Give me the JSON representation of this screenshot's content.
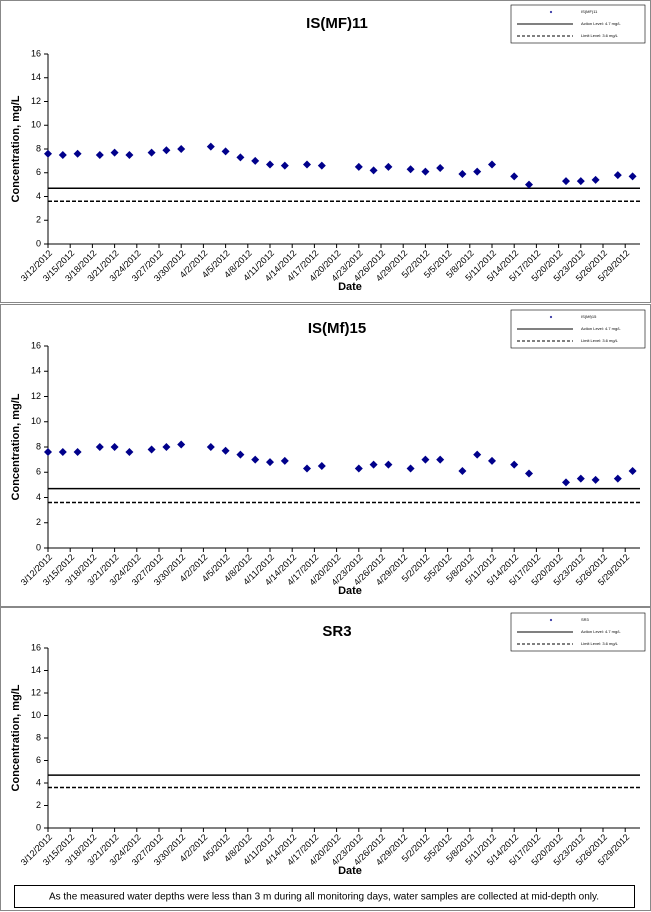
{
  "chart_data": [
    {
      "type": "scatter",
      "title": "IS(MF)11",
      "x_label": "Date",
      "y_label": "Concentration, mg/L",
      "legend": "upper right",
      "grid": false,
      "series": [
        {
          "name": "IS(MF)11",
          "color": "#00008b",
          "x": [
            "3/12/2012",
            "3/14/2012",
            "3/16/2012",
            "3/19/2012",
            "3/21/2012",
            "3/23/2012",
            "3/26/2012",
            "3/28/2012",
            "3/30/2012",
            "4/3/2012",
            "4/5/2012",
            "4/7/2012",
            "4/9/2012",
            "4/11/2012",
            "4/13/2012",
            "4/16/2012",
            "4/18/2012",
            "4/23/2012",
            "4/25/2012",
            "4/27/2012",
            "4/30/2012",
            "5/2/2012",
            "5/4/2012",
            "5/7/2012",
            "5/9/2012",
            "5/11/2012",
            "5/14/2012",
            "5/16/2012",
            "5/21/2012",
            "5/23/2012",
            "5/25/2012",
            "5/28/2012",
            "5/30/2012"
          ],
          "values": [
            7.6,
            7.5,
            7.6,
            7.5,
            7.7,
            7.5,
            7.7,
            7.9,
            8.0,
            8.2,
            7.8,
            7.3,
            7.0,
            6.7,
            6.6,
            6.7,
            6.6,
            6.5,
            6.2,
            6.5,
            6.3,
            6.1,
            6.4,
            5.9,
            6.1,
            6.7,
            5.7,
            5.0,
            5.3,
            5.3,
            5.4,
            5.8,
            5.7
          ]
        }
      ],
      "reference_lines": [
        {
          "name": "Action Level: 4.7 mg/L",
          "value": 4.7,
          "style": "solid",
          "color": "#000000"
        },
        {
          "name": "Limit Level: 3.6 mg/L",
          "value": 3.6,
          "style": "dashed",
          "color": "#000000"
        }
      ],
      "ylim": [
        0,
        16
      ],
      "yticks": [
        0,
        2,
        4,
        6,
        8,
        10,
        12,
        14,
        16
      ],
      "xlim": [
        "3/12/2012",
        "5/31/2012"
      ],
      "xticks": [
        "3/12/2012",
        "3/15/2012",
        "3/18/2012",
        "3/21/2012",
        "3/24/2012",
        "3/27/2012",
        "3/30/2012",
        "4/2/2012",
        "4/5/2012",
        "4/8/2012",
        "4/11/2012",
        "4/14/2012",
        "4/17/2012",
        "4/20/2012",
        "4/23/2012",
        "4/26/2012",
        "4/29/2012",
        "5/2/2012",
        "5/5/2012",
        "5/8/2012",
        "5/11/2012",
        "5/14/2012",
        "5/17/2012",
        "5/20/2012",
        "5/23/2012",
        "5/26/2012",
        "5/29/2012"
      ]
    },
    {
      "type": "scatter",
      "title": "IS(Mf)15",
      "x_label": "Date",
      "y_label": "Concentration, mg/L",
      "legend": "upper right",
      "grid": false,
      "series": [
        {
          "name": "IS(Mf)15",
          "color": "#00008b",
          "x": [
            "3/12/2012",
            "3/14/2012",
            "3/16/2012",
            "3/19/2012",
            "3/21/2012",
            "3/23/2012",
            "3/26/2012",
            "3/28/2012",
            "3/30/2012",
            "4/3/2012",
            "4/5/2012",
            "4/7/2012",
            "4/9/2012",
            "4/11/2012",
            "4/13/2012",
            "4/16/2012",
            "4/18/2012",
            "4/23/2012",
            "4/25/2012",
            "4/27/2012",
            "4/30/2012",
            "5/2/2012",
            "5/4/2012",
            "5/7/2012",
            "5/9/2012",
            "5/11/2012",
            "5/14/2012",
            "5/16/2012",
            "5/21/2012",
            "5/23/2012",
            "5/25/2012",
            "5/28/2012",
            "5/30/2012"
          ],
          "values": [
            7.6,
            7.6,
            7.6,
            8.0,
            8.0,
            7.6,
            7.8,
            8.0,
            8.2,
            8.0,
            7.7,
            7.4,
            7.0,
            6.8,
            6.9,
            6.3,
            6.5,
            6.3,
            6.6,
            6.6,
            6.3,
            7.0,
            7.0,
            6.1,
            7.4,
            6.9,
            6.6,
            5.9,
            5.2,
            5.5,
            5.4,
            5.5,
            6.1
          ]
        }
      ],
      "reference_lines": [
        {
          "name": "Action Level: 4.7 mg/L",
          "value": 4.7,
          "style": "solid",
          "color": "#000000"
        },
        {
          "name": "Limit Level: 3.6 mg/L",
          "value": 3.6,
          "style": "dashed",
          "color": "#000000"
        }
      ],
      "ylim": [
        0,
        16
      ],
      "yticks": [
        0,
        2,
        4,
        6,
        8,
        10,
        12,
        14,
        16
      ],
      "xlim": [
        "3/12/2012",
        "5/31/2012"
      ],
      "xticks": [
        "3/12/2012",
        "3/15/2012",
        "3/18/2012",
        "3/21/2012",
        "3/24/2012",
        "3/27/2012",
        "3/30/2012",
        "4/2/2012",
        "4/5/2012",
        "4/8/2012",
        "4/11/2012",
        "4/14/2012",
        "4/17/2012",
        "4/20/2012",
        "4/23/2012",
        "4/26/2012",
        "4/29/2012",
        "5/2/2012",
        "5/5/2012",
        "5/8/2012",
        "5/11/2012",
        "5/14/2012",
        "5/17/2012",
        "5/20/2012",
        "5/23/2012",
        "5/26/2012",
        "5/29/2012"
      ]
    },
    {
      "type": "scatter",
      "title": "SR3",
      "x_label": "Date",
      "y_label": "Concentration, mg/L",
      "legend": "upper right",
      "grid": false,
      "series": [
        {
          "name": "SR3",
          "color": "#00008b",
          "x": [],
          "values": []
        }
      ],
      "reference_lines": [
        {
          "name": "Action Level: 4.7 mg/L",
          "value": 4.7,
          "style": "solid",
          "color": "#000000"
        },
        {
          "name": "Limit Level: 3.6 mg/L",
          "value": 3.6,
          "style": "dashed",
          "color": "#000000"
        }
      ],
      "ylim": [
        0,
        16
      ],
      "yticks": [
        0,
        2,
        4,
        6,
        8,
        10,
        12,
        14,
        16
      ],
      "xlim": [
        "3/12/2012",
        "5/31/2012"
      ],
      "xticks": [
        "3/12/2012",
        "3/15/2012",
        "3/18/2012",
        "3/21/2012",
        "3/24/2012",
        "3/27/2012",
        "3/30/2012",
        "4/2/2012",
        "4/5/2012",
        "4/8/2012",
        "4/11/2012",
        "4/14/2012",
        "4/17/2012",
        "4/20/2012",
        "4/23/2012",
        "4/26/2012",
        "4/29/2012",
        "5/2/2012",
        "5/5/2012",
        "5/8/2012",
        "5/11/2012",
        "5/14/2012",
        "5/17/2012",
        "5/20/2012",
        "5/23/2012",
        "5/26/2012",
        "5/29/2012"
      ]
    }
  ],
  "note": "As the measured water depths were less than 3 m during all monitoring days, water samples are collected at mid-depth only."
}
